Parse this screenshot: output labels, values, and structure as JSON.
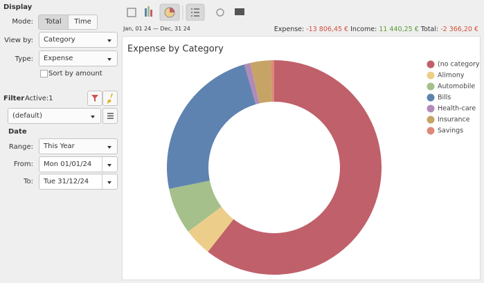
{
  "display": {
    "title": "Display",
    "mode_label": "Mode:",
    "mode_options": [
      "Total",
      "Time"
    ],
    "view_by_label": "View by:",
    "view_by": "Category",
    "type_label": "Type:",
    "type": "Expense",
    "sort_label": "Sort by amount"
  },
  "filter": {
    "title": "Filter",
    "active": "Active:1",
    "preset": "(default)"
  },
  "date": {
    "title": "Date",
    "range_label": "Range:",
    "range": "This Year",
    "from_label": "From:",
    "from": "Mon 01/01/24",
    "to_label": "To:",
    "to": "Tue 31/12/24"
  },
  "summary": {
    "period": "Jan, 01 24 — Dec, 31 24",
    "expense_label": "Expense:",
    "expense": "-13 806,45 €",
    "income_label": "Income:",
    "income": "11 440,25 €",
    "total_label": "Total:",
    "total": "-2 366,20 €"
  },
  "chart_data": {
    "type": "pie",
    "donut": true,
    "title": "Expense by Category",
    "legend": "right",
    "categories": [
      "(no category)",
      "Alimony",
      "Automobile",
      "Bills",
      "Health-care",
      "Insurance",
      "Savings"
    ],
    "values": [
      60.6,
      4.2,
      7,
      23.7,
      0.9,
      3.1,
      0.5
    ],
    "colors": [
      "#c0606a",
      "#ecce8a",
      "#a5c08b",
      "#5f83b0",
      "#b08bb8",
      "#c6a466",
      "#dc8a78"
    ]
  }
}
